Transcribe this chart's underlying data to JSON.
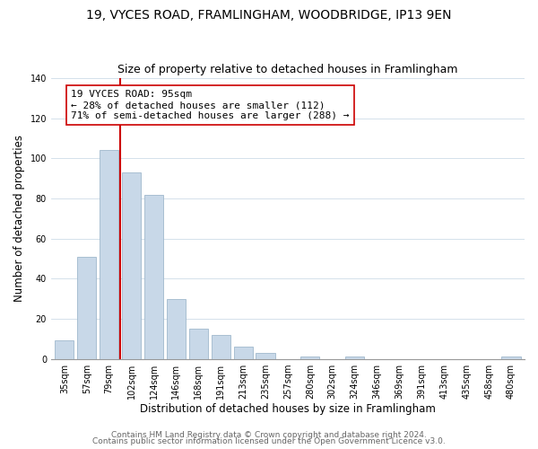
{
  "title": "19, VYCES ROAD, FRAMLINGHAM, WOODBRIDGE, IP13 9EN",
  "subtitle": "Size of property relative to detached houses in Framlingham",
  "xlabel": "Distribution of detached houses by size in Framlingham",
  "ylabel": "Number of detached properties",
  "bar_labels": [
    "35sqm",
    "57sqm",
    "79sqm",
    "102sqm",
    "124sqm",
    "146sqm",
    "168sqm",
    "191sqm",
    "213sqm",
    "235sqm",
    "257sqm",
    "280sqm",
    "302sqm",
    "324sqm",
    "346sqm",
    "369sqm",
    "391sqm",
    "413sqm",
    "435sqm",
    "458sqm",
    "480sqm"
  ],
  "bar_values": [
    9,
    51,
    104,
    93,
    82,
    30,
    15,
    12,
    6,
    3,
    0,
    1,
    0,
    1,
    0,
    0,
    0,
    0,
    0,
    0,
    1
  ],
  "bar_color": "#c8d8e8",
  "bar_edge_color": "#a0b8cc",
  "vline_color": "#cc0000",
  "annotation_box_text": "19 VYCES ROAD: 95sqm\n← 28% of detached houses are smaller (112)\n71% of semi-detached houses are larger (288) →",
  "annotation_box_edgecolor": "#cc0000",
  "annotation_box_facecolor": "#ffffff",
  "ylim": [
    0,
    140
  ],
  "yticks": [
    0,
    20,
    40,
    60,
    80,
    100,
    120,
    140
  ],
  "footer_line1": "Contains HM Land Registry data © Crown copyright and database right 2024.",
  "footer_line2": "Contains public sector information licensed under the Open Government Licence v3.0.",
  "title_fontsize": 10,
  "subtitle_fontsize": 9,
  "axis_label_fontsize": 8.5,
  "tick_fontsize": 7,
  "annotation_fontsize": 8,
  "footer_fontsize": 6.5
}
